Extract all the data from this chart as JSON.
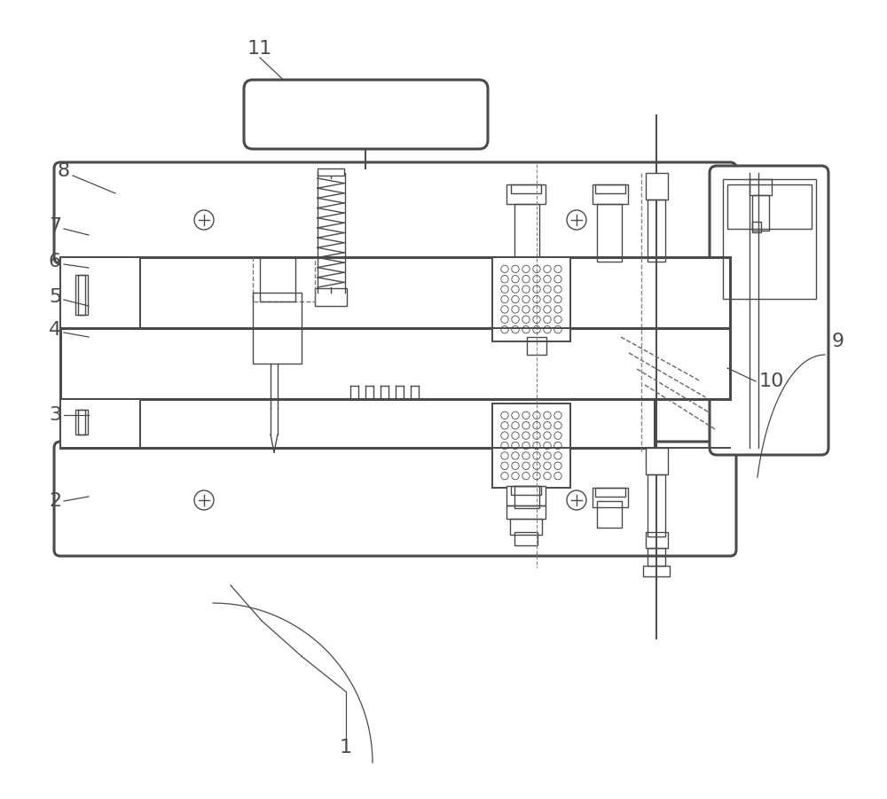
{
  "bg_color": "#ffffff",
  "line_color": "#4a4a4a",
  "figsize": [
    10.0,
    9.01
  ],
  "dpi": 100,
  "label_fontsize": 16
}
